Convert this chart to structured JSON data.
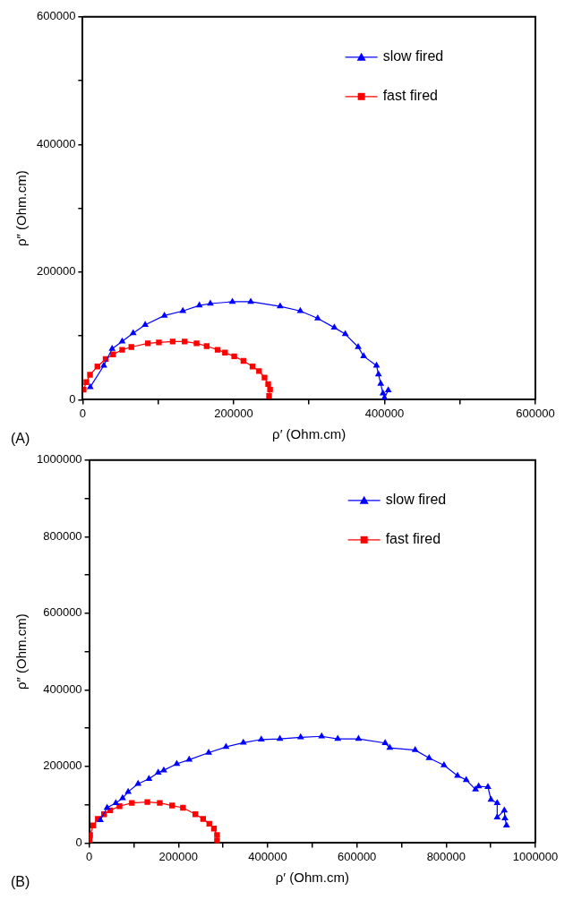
{
  "chart_data": [
    {
      "type": "line",
      "xlabel": "ρ′ (Ohm.cm)",
      "ylabel": "ρ″ (Ohm.cm)",
      "annotations": [
        "(A)"
      ],
      "legend": "top right",
      "grid": false,
      "line_style": "solid",
      "xlim": [
        0,
        600000
      ],
      "xticks": [
        0,
        {
          "value": 100000,
          "label": null
        },
        200000,
        {
          "value": 300000,
          "label": null
        },
        400000,
        {
          "value": 500000,
          "label": null
        },
        600000
      ],
      "ylim": [
        0,
        600000
      ],
      "yticks": [
        0,
        {
          "value": 100000,
          "label": null
        },
        200000,
        {
          "value": 300000,
          "label": null
        },
        400000,
        {
          "value": 500000,
          "label": null
        },
        600000
      ],
      "series": [
        {
          "name": "slow fired",
          "color": "#0000ff",
          "marker": "triangle",
          "x": [
            10000,
            28000,
            39000,
            52300,
            66900,
            82800,
            108300,
            132700,
            154600,
            169200,
            198400,
            222700,
            261700,
            288400,
            311500,
            333500,
            348000,
            365100,
            372400,
            389400,
            392000,
            395000,
            398000,
            400000,
            405000
          ],
          "values": [
            20000,
            53600,
            79700,
            91300,
            104300,
            117400,
            131900,
            139100,
            147800,
            150700,
            153600,
            153600,
            146400,
            139100,
            127500,
            113000,
            102900,
            82600,
            68100,
            53600,
            40000,
            25000,
            10000,
            3000,
            15000
          ]
        },
        {
          "name": "fast fired",
          "color": "#ff0000",
          "marker": "square",
          "x": [
            1200,
            4900,
            9700,
            19500,
            30400,
            40200,
            52300,
            64500,
            86400,
            101000,
            119300,
            135100,
            150900,
            164300,
            178900,
            188600,
            200800,
            213000,
            225100,
            233700,
            241000,
            245800,
            248300,
            247000
          ],
          "values": [
            15900,
            27500,
            39100,
            52200,
            63800,
            71000,
            78300,
            82600,
            88400,
            89800,
            91300,
            91300,
            88400,
            84000,
            78300,
            73900,
            68100,
            60900,
            52200,
            44900,
            34800,
            24600,
            15900,
            5800
          ]
        }
      ]
    },
    {
      "type": "line",
      "xlabel": "ρ′ (Ohm.cm)",
      "ylabel": "ρ″ (Ohm.cm)",
      "annotations": [
        "(B)"
      ],
      "legend": "top right",
      "grid": false,
      "line_style": "solid",
      "xlim": [
        0,
        1000000
      ],
      "xticks": [
        0,
        {
          "value": 100000,
          "label": null
        },
        200000,
        {
          "value": 300000,
          "label": null
        },
        400000,
        {
          "value": 500000,
          "label": null
        },
        600000,
        {
          "value": 700000,
          "label": null
        },
        800000,
        {
          "value": 900000,
          "label": null
        },
        1000000
      ],
      "ylim": [
        0,
        1000000
      ],
      "yticks": [
        0,
        {
          "value": 100000,
          "label": null
        },
        200000,
        {
          "value": 300000,
          "label": null
        },
        400000,
        {
          "value": 500000,
          "label": null
        },
        600000,
        {
          "value": 700000,
          "label": null
        },
        800000,
        {
          "value": 900000,
          "label": null
        },
        1000000
      ],
      "series": [
        {
          "name": "slow fired",
          "color": "#0000ff",
          "marker": "triangle",
          "x": [
            25000,
            40200,
            59700,
            74900,
            87400,
            109600,
            133900,
            154700,
            167200,
            196300,
            224100,
            267800,
            306700,
            345500,
            385700,
            427400,
            473900,
            521000,
            557100,
            603600,
            663300,
            673700,
            730600,
            761800,
            795100,
            825600,
            845000,
            865800,
            872800,
            893600,
            900500,
            914400,
            914400,
            930400,
            931800,
            935300
          ],
          "values": [
            60000,
            92100,
            104600,
            117200,
            133900,
            154800,
            167400,
            184100,
            190000,
            206700,
            217600,
            236000,
            251000,
            262000,
            270400,
            272000,
            276200,
            278700,
            272000,
            272000,
            261100,
            248600,
            242700,
            221800,
            203400,
            175800,
            164900,
            139800,
            148100,
            146500,
            113000,
            104600,
            67000,
            85400,
            64400,
            46000
          ]
        },
        {
          "name": "fast fired",
          "color": "#ff0000",
          "marker": "square",
          "x": [
            1000,
            2100,
            9000,
            19400,
            33300,
            47200,
            68000,
            95700,
            130400,
            158200,
            185900,
            210200,
            238000,
            255300,
            269200,
            279600,
            286500,
            286500
          ],
          "values": [
            8000,
            20900,
            46000,
            62800,
            75300,
            85400,
            96300,
            104600,
            107100,
            104600,
            97900,
            92100,
            75300,
            62800,
            50200,
            37700,
            20900,
            5900
          ]
        }
      ]
    }
  ]
}
